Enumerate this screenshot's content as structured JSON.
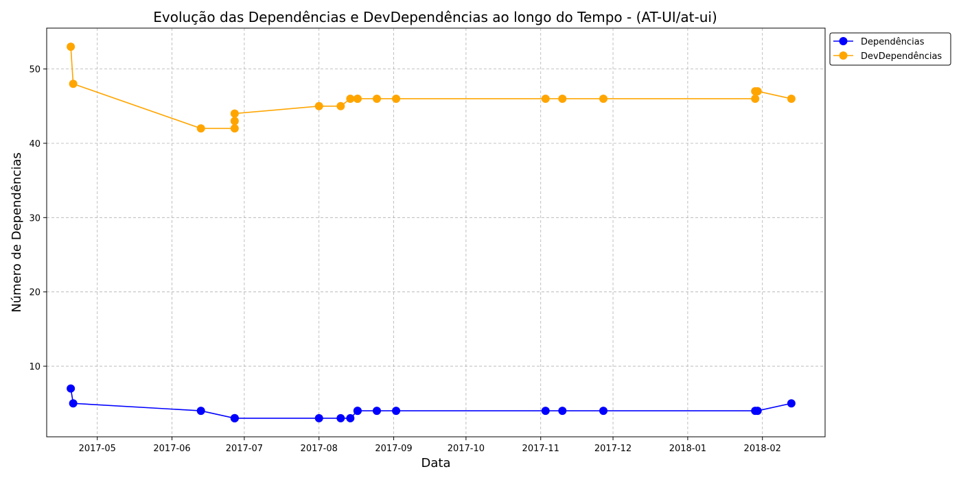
{
  "chart_data": {
    "type": "line",
    "title": "Evolução das Dependências e DevDependências ao longo do Tempo - (AT-UI/at-ui)",
    "xlabel": "Data",
    "ylabel": "Número de Dependências",
    "x_axis_type": "date",
    "xlim": [
      "2017-04-10",
      "2018-02-27"
    ],
    "ylim": [
      0.5,
      55.5
    ],
    "x_ticks": [
      "2017-05-01",
      "2017-06-01",
      "2017-07-01",
      "2017-08-01",
      "2017-09-01",
      "2017-10-01",
      "2017-11-01",
      "2017-12-01",
      "2018-01-01",
      "2018-02-01"
    ],
    "x_tick_labels": [
      "2017-05",
      "2017-06",
      "2017-07",
      "2017-08",
      "2017-09",
      "2017-10",
      "2017-11",
      "2017-12",
      "2018-01",
      "2018-02"
    ],
    "y_ticks": [
      10,
      20,
      30,
      40,
      50
    ],
    "y_tick_labels": [
      "10",
      "20",
      "30",
      "40",
      "50"
    ],
    "grid": true,
    "legend_position": "outside-top-right",
    "series": [
      {
        "name": "Dependências",
        "color": "#0000ff",
        "marker": "circle",
        "points": [
          {
            "x": "2017-04-20",
            "y": 7
          },
          {
            "x": "2017-04-21",
            "y": 5
          },
          {
            "x": "2017-06-13",
            "y": 4
          },
          {
            "x": "2017-06-27",
            "y": 3
          },
          {
            "x": "2017-06-27",
            "y": 3
          },
          {
            "x": "2017-06-27",
            "y": 3
          },
          {
            "x": "2017-08-01",
            "y": 3
          },
          {
            "x": "2017-08-10",
            "y": 3
          },
          {
            "x": "2017-08-14",
            "y": 3
          },
          {
            "x": "2017-08-17",
            "y": 4
          },
          {
            "x": "2017-08-17",
            "y": 4
          },
          {
            "x": "2017-08-25",
            "y": 4
          },
          {
            "x": "2017-09-02",
            "y": 4
          },
          {
            "x": "2017-11-03",
            "y": 4
          },
          {
            "x": "2017-11-10",
            "y": 4
          },
          {
            "x": "2017-11-27",
            "y": 4
          },
          {
            "x": "2018-01-29",
            "y": 4
          },
          {
            "x": "2018-01-30",
            "y": 4
          },
          {
            "x": "2018-02-13",
            "y": 5
          }
        ]
      },
      {
        "name": "DevDependências",
        "color": "#ffa500",
        "marker": "circle",
        "points": [
          {
            "x": "2017-04-20",
            "y": 53
          },
          {
            "x": "2017-04-21",
            "y": 48
          },
          {
            "x": "2017-06-13",
            "y": 42
          },
          {
            "x": "2017-06-27",
            "y": 42
          },
          {
            "x": "2017-06-27",
            "y": 43
          },
          {
            "x": "2017-06-27",
            "y": 44
          },
          {
            "x": "2017-08-01",
            "y": 45
          },
          {
            "x": "2017-08-10",
            "y": 45
          },
          {
            "x": "2017-08-14",
            "y": 46
          },
          {
            "x": "2017-08-17",
            "y": 46
          },
          {
            "x": "2017-08-17",
            "y": 46
          },
          {
            "x": "2017-08-25",
            "y": 46
          },
          {
            "x": "2017-09-02",
            "y": 46
          },
          {
            "x": "2017-11-03",
            "y": 46
          },
          {
            "x": "2017-11-10",
            "y": 46
          },
          {
            "x": "2017-11-27",
            "y": 46
          },
          {
            "x": "2018-01-29",
            "y": 46
          },
          {
            "x": "2018-01-29",
            "y": 47
          },
          {
            "x": "2018-01-30",
            "y": 47
          },
          {
            "x": "2018-02-13",
            "y": 46
          }
        ]
      }
    ]
  }
}
